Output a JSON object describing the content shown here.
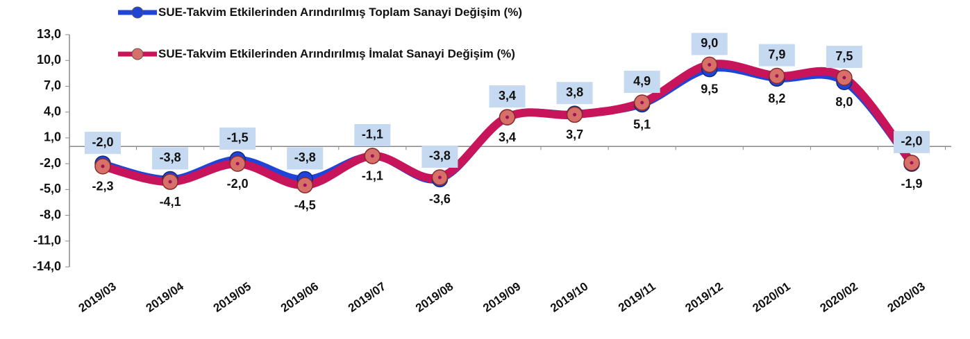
{
  "chart_data": {
    "type": "line",
    "categories": [
      "2019/03",
      "2019/04",
      "2019/05",
      "2019/06",
      "2019/07",
      "2019/08",
      "2019/09",
      "2019/10",
      "2019/11",
      "2019/12",
      "2020/01",
      "2020/02",
      "2020/03"
    ],
    "series": [
      {
        "name": "SUE-Takvim Etkilerinden Arındırılmış Toplam Sanayi Değişim (%)",
        "color": "#1f45d8",
        "values": [
          -2.0,
          -3.8,
          -1.5,
          -3.8,
          -1.1,
          -3.8,
          3.4,
          3.8,
          4.9,
          9.0,
          7.9,
          7.5,
          -2.0
        ],
        "value_labels": [
          "-2,0",
          "-3,8",
          "-1,5",
          "-3,8",
          "-1,1",
          "-3,8",
          "3,4",
          "3,8",
          "4,9",
          "9,0",
          "7,9",
          "7,5",
          "-2,0"
        ]
      },
      {
        "name": "SUE-Takvim Etkilerinden Arındırılmış İmalat Sanayi Değişim (%)",
        "color": "#c8145a",
        "values": [
          -2.3,
          -4.1,
          -2.0,
          -4.5,
          -1.1,
          -3.6,
          3.4,
          3.7,
          5.1,
          9.5,
          8.2,
          8.0,
          -1.9
        ],
        "value_labels": [
          "-2,3",
          "-4,1",
          "-2,0",
          "-4,5",
          "-1,1",
          "-3,6",
          "3,4",
          "3,7",
          "5,1",
          "9,5",
          "8,2",
          "8,0",
          "-1,9"
        ]
      }
    ],
    "ylim": [
      -14,
      13
    ],
    "yticks": [
      {
        "value": 13,
        "label": "13,0"
      },
      {
        "value": 10,
        "label": "10,0"
      },
      {
        "value": 7,
        "label": "7,0"
      },
      {
        "value": 4,
        "label": "4,0"
      },
      {
        "value": 1,
        "label": "1,0"
      },
      {
        "value": -2,
        "label": "-2,0"
      },
      {
        "value": -5,
        "label": "-5,0"
      },
      {
        "value": -8,
        "label": "-8,0"
      },
      {
        "value": -11,
        "label": "-11,0"
      },
      {
        "value": -14,
        "label": "-14,0"
      }
    ]
  }
}
